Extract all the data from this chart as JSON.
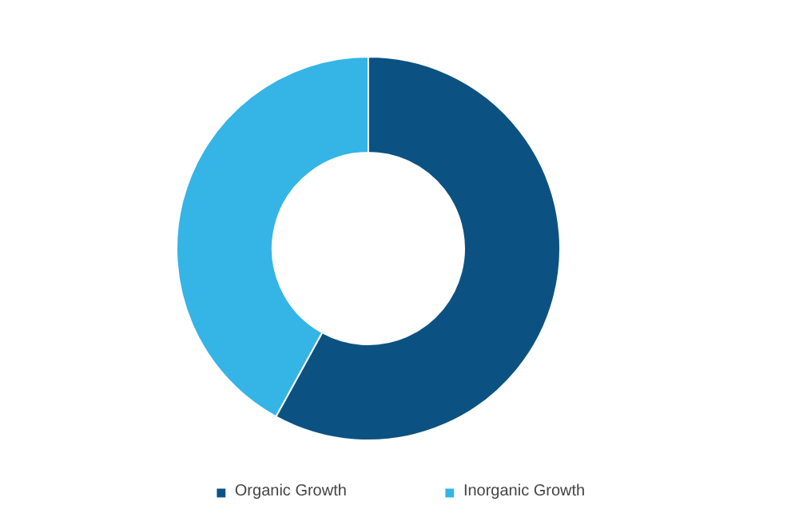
{
  "chart_data": {
    "type": "donut",
    "categories": [
      "Organic Growth",
      "Inorganic Growth"
    ],
    "values": [
      58,
      42
    ],
    "colors": [
      "#0b5282",
      "#35b4e6"
    ],
    "legend": "bottom"
  }
}
